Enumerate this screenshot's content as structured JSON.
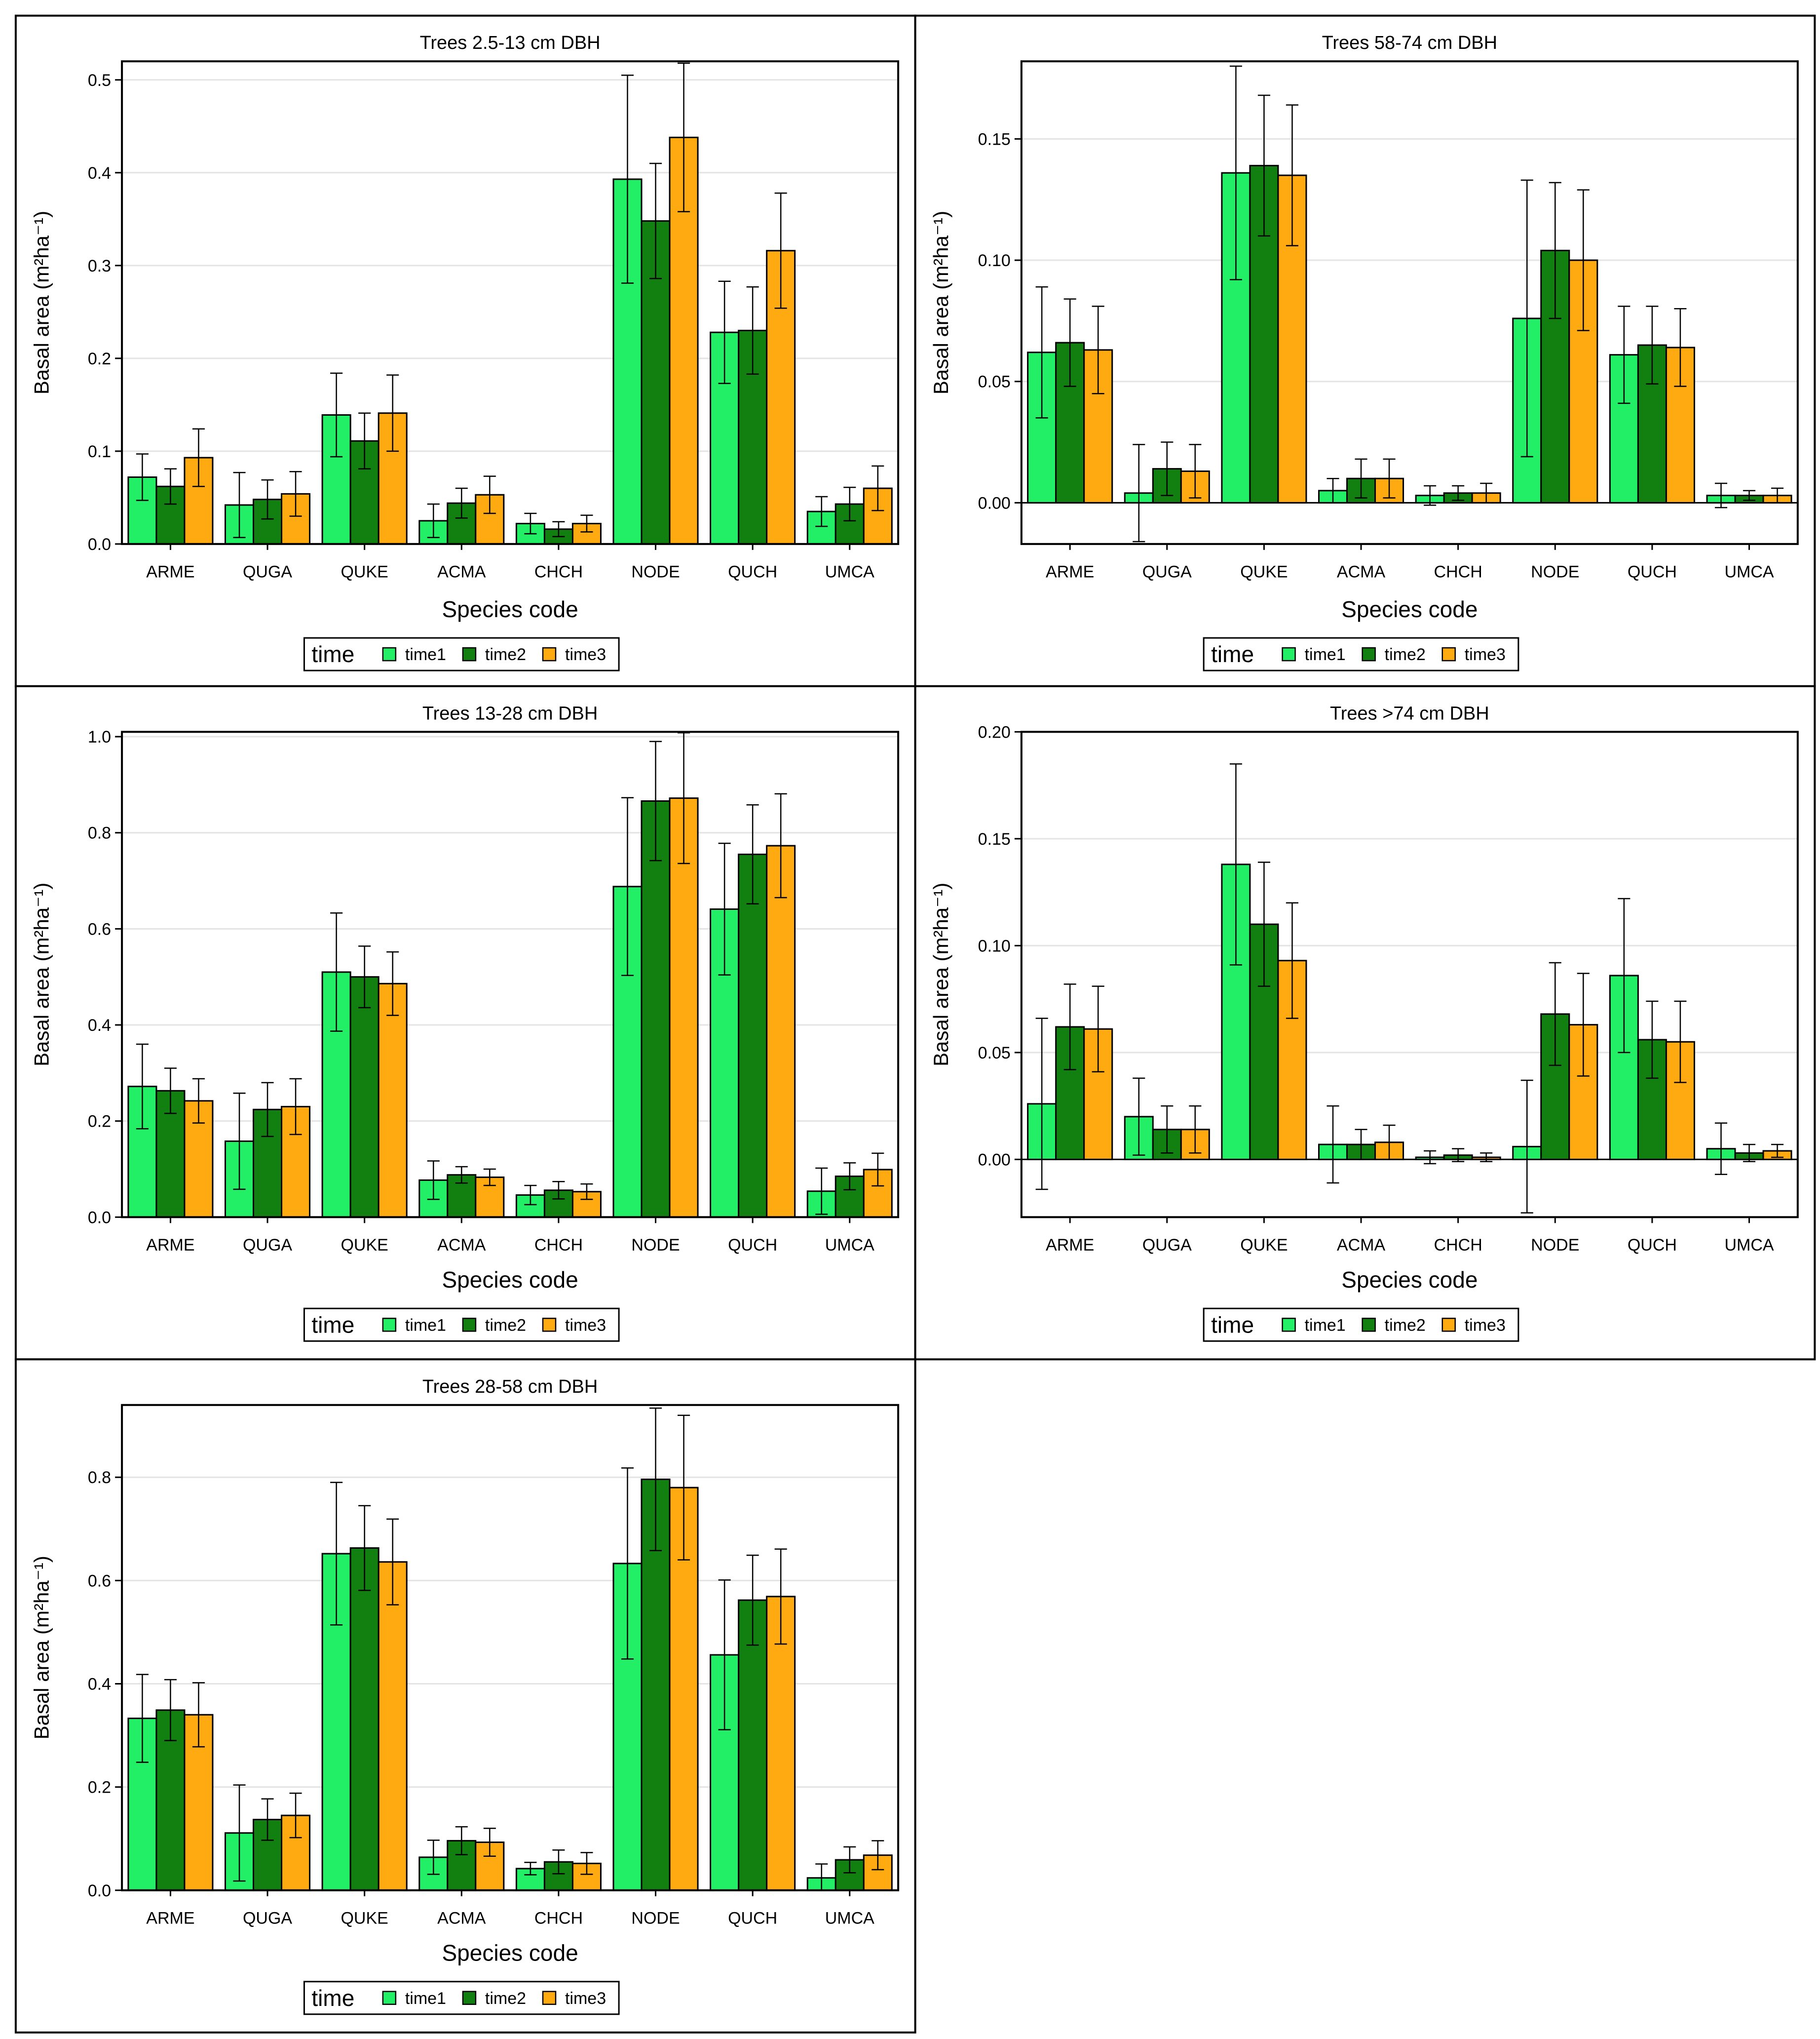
{
  "colors": {
    "time1": "#22ee66",
    "time2": "#118011",
    "time3": "#ffaa11",
    "border": "#000000",
    "grid": "#e4e4e4"
  },
  "chart_data": [
    {
      "type": "bar",
      "title": "Trees 2.5-13 cm DBH",
      "xlabel": "Species code",
      "ylabel": "Basal area (m²ha⁻¹)",
      "ylim": [
        0,
        0.52
      ],
      "yticks": [
        0,
        0.1,
        0.2,
        0.3,
        0.4,
        0.5
      ],
      "ytick_labels": [
        "0.0",
        "0.1",
        "0.2",
        "0.3",
        "0.4",
        "0.5"
      ],
      "categories": [
        "ARME",
        "QUGA",
        "QUKE",
        "ACMA",
        "CHCH",
        "NODE",
        "QUCH",
        "UMCA"
      ],
      "legend": {
        "title": "time",
        "entries": [
          "time1",
          "time2",
          "time3"
        ],
        "position": "bottom"
      },
      "series": [
        {
          "name": "time1",
          "values": [
            0.072,
            0.042,
            0.139,
            0.025,
            0.022,
            0.393,
            0.228,
            0.035
          ],
          "err": [
            0.025,
            0.035,
            0.045,
            0.018,
            0.011,
            0.112,
            0.055,
            0.016
          ]
        },
        {
          "name": "time2",
          "values": [
            0.062,
            0.048,
            0.111,
            0.044,
            0.016,
            0.348,
            0.23,
            0.043
          ],
          "err": [
            0.019,
            0.021,
            0.03,
            0.016,
            0.008,
            0.062,
            0.047,
            0.018
          ]
        },
        {
          "name": "time3",
          "values": [
            0.093,
            0.054,
            0.141,
            0.053,
            0.022,
            0.438,
            0.316,
            0.06
          ],
          "err": [
            0.031,
            0.024,
            0.041,
            0.02,
            0.009,
            0.08,
            0.062,
            0.024
          ]
        }
      ]
    },
    {
      "type": "bar",
      "title": "Trees 58-74 cm DBH",
      "xlabel": "Species code",
      "ylabel": "Basal area (m²ha⁻¹)",
      "ylim": [
        -0.017,
        0.182
      ],
      "yticks": [
        0,
        0.05,
        0.1,
        0.15
      ],
      "ytick_labels": [
        "0.00",
        "0.05",
        "0.10",
        "0.15"
      ],
      "categories": [
        "ARME",
        "QUGA",
        "QUKE",
        "ACMA",
        "CHCH",
        "NODE",
        "QUCH",
        "UMCA"
      ],
      "legend": {
        "title": "time",
        "entries": [
          "time1",
          "time2",
          "time3"
        ],
        "position": "bottom"
      },
      "series": [
        {
          "name": "time1",
          "values": [
            0.062,
            0.004,
            0.136,
            0.005,
            0.003,
            0.076,
            0.061,
            0.003
          ],
          "err": [
            0.027,
            0.02,
            0.044,
            0.005,
            0.004,
            0.057,
            0.02,
            0.005
          ]
        },
        {
          "name": "time2",
          "values": [
            0.066,
            0.014,
            0.139,
            0.01,
            0.004,
            0.104,
            0.065,
            0.003
          ],
          "err": [
            0.018,
            0.011,
            0.029,
            0.008,
            0.003,
            0.028,
            0.016,
            0.002
          ]
        },
        {
          "name": "time3",
          "values": [
            0.063,
            0.013,
            0.135,
            0.01,
            0.004,
            0.1,
            0.064,
            0.003
          ],
          "err": [
            0.018,
            0.011,
            0.029,
            0.008,
            0.004,
            0.029,
            0.016,
            0.003
          ]
        }
      ]
    },
    {
      "type": "bar",
      "title": "Trees 13-28 cm DBH",
      "xlabel": "Species code",
      "ylabel": "Basal area (m²ha⁻¹)",
      "ylim": [
        0,
        1.01
      ],
      "yticks": [
        0,
        0.2,
        0.4,
        0.6,
        0.8,
        1.0
      ],
      "ytick_labels": [
        "0.0",
        "0.2",
        "0.4",
        "0.6",
        "0.8",
        "1.0"
      ],
      "categories": [
        "ARME",
        "QUGA",
        "QUKE",
        "ACMA",
        "CHCH",
        "NODE",
        "QUCH",
        "UMCA"
      ],
      "legend": {
        "title": "time",
        "entries": [
          "time1",
          "time2",
          "time3"
        ],
        "position": "bottom"
      },
      "series": [
        {
          "name": "time1",
          "values": [
            0.272,
            0.158,
            0.51,
            0.077,
            0.046,
            0.688,
            0.641,
            0.054
          ],
          "err": [
            0.088,
            0.1,
            0.123,
            0.04,
            0.02,
            0.185,
            0.137,
            0.048
          ]
        },
        {
          "name": "time2",
          "values": [
            0.263,
            0.224,
            0.5,
            0.088,
            0.056,
            0.866,
            0.755,
            0.085
          ],
          "err": [
            0.047,
            0.056,
            0.064,
            0.017,
            0.018,
            0.124,
            0.103,
            0.028
          ]
        },
        {
          "name": "time3",
          "values": [
            0.242,
            0.23,
            0.486,
            0.083,
            0.053,
            0.872,
            0.773,
            0.099
          ],
          "err": [
            0.046,
            0.058,
            0.066,
            0.017,
            0.016,
            0.136,
            0.108,
            0.034
          ]
        }
      ]
    },
    {
      "type": "bar",
      "title": "Trees >74 cm DBH",
      "xlabel": "Species code",
      "ylabel": "Basal area (m²ha⁻¹)",
      "ylim": [
        -0.027,
        0.2
      ],
      "yticks": [
        0,
        0.05,
        0.1,
        0.15,
        0.2
      ],
      "ytick_labels": [
        "0.00",
        "0.05",
        "0.10",
        "0.15",
        "0.20"
      ],
      "categories": [
        "ARME",
        "QUGA",
        "QUKE",
        "ACMA",
        "CHCH",
        "NODE",
        "QUCH",
        "UMCA"
      ],
      "legend": {
        "title": "time",
        "entries": [
          "time1",
          "time2",
          "time3"
        ],
        "position": "bottom"
      },
      "series": [
        {
          "name": "time1",
          "values": [
            0.026,
            0.02,
            0.138,
            0.007,
            0.001,
            0.006,
            0.086,
            0.005
          ],
          "err": [
            0.04,
            0.018,
            0.047,
            0.018,
            0.003,
            0.031,
            0.036,
            0.012
          ]
        },
        {
          "name": "time2",
          "values": [
            0.062,
            0.014,
            0.11,
            0.007,
            0.002,
            0.068,
            0.056,
            0.003
          ],
          "err": [
            0.02,
            0.011,
            0.029,
            0.007,
            0.003,
            0.024,
            0.018,
            0.004
          ]
        },
        {
          "name": "time3",
          "values": [
            0.061,
            0.014,
            0.093,
            0.008,
            0.001,
            0.063,
            0.055,
            0.004
          ],
          "err": [
            0.02,
            0.011,
            0.027,
            0.008,
            0.002,
            0.024,
            0.019,
            0.003
          ]
        }
      ]
    },
    {
      "type": "bar",
      "title": "Trees 28-58 cm DBH",
      "xlabel": "Species code",
      "ylabel": "Basal area (m²ha⁻¹)",
      "ylim": [
        0,
        0.94
      ],
      "yticks": [
        0,
        0.2,
        0.4,
        0.6,
        0.8
      ],
      "ytick_labels": [
        "0.0",
        "0.2",
        "0.4",
        "0.6",
        "0.8"
      ],
      "categories": [
        "ARME",
        "QUGA",
        "QUKE",
        "ACMA",
        "CHCH",
        "NODE",
        "QUCH",
        "UMCA"
      ],
      "legend": {
        "title": "time",
        "entries": [
          "time1",
          "time2",
          "time3"
        ],
        "position": "bottom"
      },
      "series": [
        {
          "name": "time1",
          "values": [
            0.333,
            0.111,
            0.652,
            0.064,
            0.042,
            0.633,
            0.456,
            0.024
          ],
          "err": [
            0.085,
            0.093,
            0.138,
            0.033,
            0.012,
            0.185,
            0.145,
            0.027
          ]
        },
        {
          "name": "time2",
          "values": [
            0.349,
            0.137,
            0.663,
            0.096,
            0.055,
            0.796,
            0.562,
            0.059
          ],
          "err": [
            0.059,
            0.04,
            0.082,
            0.027,
            0.023,
            0.138,
            0.087,
            0.025
          ]
        },
        {
          "name": "time3",
          "values": [
            0.34,
            0.145,
            0.636,
            0.093,
            0.052,
            0.78,
            0.569,
            0.068
          ],
          "err": [
            0.062,
            0.043,
            0.083,
            0.027,
            0.021,
            0.14,
            0.092,
            0.028
          ]
        }
      ]
    }
  ]
}
